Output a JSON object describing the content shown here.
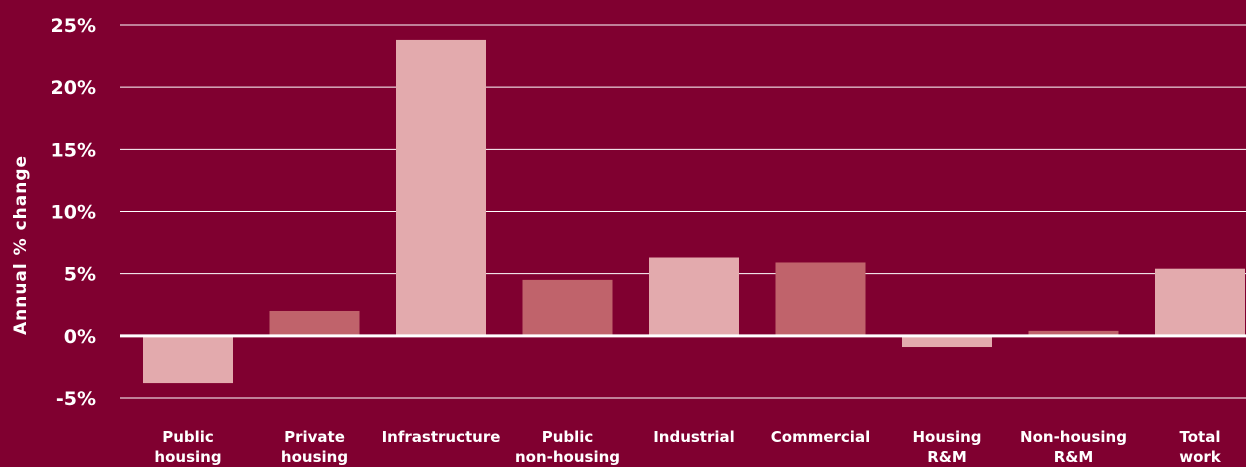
{
  "chart_data": {
    "type": "bar",
    "ylabel": "Annual % change",
    "ylim": [
      -5,
      25
    ],
    "yticks": [
      25,
      20,
      15,
      10,
      5,
      0,
      -5
    ],
    "ytick_labels": [
      "25%",
      "20%",
      "15%",
      "10%",
      "5%",
      "0%",
      "-5%"
    ],
    "grid": true,
    "categories": [
      [
        "Public",
        "housing"
      ],
      [
        "Private",
        "housing"
      ],
      [
        "Infrastructure"
      ],
      [
        "Public",
        "non-housing"
      ],
      [
        "Industrial"
      ],
      [
        "Commercial"
      ],
      [
        "Housing",
        "R&M"
      ],
      [
        "Non-housing",
        "R&M"
      ],
      [
        "Total",
        "work"
      ]
    ],
    "values": [
      -3.8,
      2.0,
      23.8,
      4.5,
      6.3,
      5.9,
      -0.9,
      0.4,
      5.4
    ],
    "bar_colors": [
      "#e3aaad",
      "#c0636b",
      "#e3aaad",
      "#c0636b",
      "#e3aaad",
      "#c0636b",
      "#e3aaad",
      "#c0636b",
      "#e3aaad"
    ]
  },
  "colors": {
    "background": "#800030",
    "gridline": "#ffffff",
    "text": "#ffffff"
  }
}
